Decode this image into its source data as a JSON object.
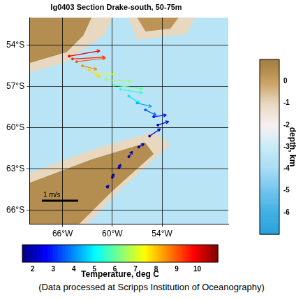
{
  "chart_data": {
    "type": "vector_map",
    "title": "lg0403 Section Drake-south, 50-75m",
    "xlim": [
      -70,
      -46
    ],
    "ylim": [
      -67,
      -52
    ],
    "xticks": [
      {
        "value": -66,
        "label": "66°W"
      },
      {
        "value": -60,
        "label": "60°W"
      },
      {
        "value": -54,
        "label": "54°W"
      }
    ],
    "yticks": [
      {
        "value": -66,
        "label": "66°S"
      },
      {
        "value": -63,
        "label": "63°S"
      },
      {
        "value": -60,
        "label": "60°S"
      },
      {
        "value": -57,
        "label": "57°S"
      },
      {
        "value": -54,
        "label": "54°S"
      }
    ],
    "grid": true,
    "vectors": {
      "lon": [
        -65.2,
        -64.8,
        -64.3,
        -63.6,
        -62.8,
        -61.8,
        -60.8,
        -59.8,
        -59.0,
        -58.0,
        -57.0,
        -56.0,
        -55.0,
        -54.5,
        -55.5,
        -56.8,
        -58.0,
        -59.2,
        -60.0,
        -60.6
      ],
      "lat": [
        -54.8,
        -55.0,
        -55.2,
        -55.5,
        -55.8,
        -56.1,
        -56.5,
        -56.9,
        -57.2,
        -57.7,
        -58.2,
        -58.7,
        -59.2,
        -59.8,
        -60.6,
        -61.4,
        -62.1,
        -62.9,
        -63.6,
        -64.3
      ],
      "u": [
        0.85,
        0.9,
        0.8,
        0.4,
        0.3,
        0.5,
        0.7,
        0.8,
        0.6,
        0.3,
        0.4,
        0.3,
        0.35,
        0.3,
        0.3,
        0.15,
        0.1,
        0.05,
        0.05,
        0.05
      ],
      "v": [
        0.15,
        0.05,
        0.1,
        -0.1,
        -0.2,
        0.0,
        -0.05,
        -0.1,
        -0.1,
        -0.2,
        -0.1,
        -0.15,
        0.05,
        0.1,
        0.2,
        0.1,
        0.15,
        0.1,
        0.1,
        0.05
      ],
      "temperature": [
        10.0,
        9.5,
        9.0,
        8.5,
        7.8,
        7.0,
        6.5,
        6.0,
        5.5,
        4.8,
        4.2,
        3.5,
        2.8,
        2.3,
        2.0,
        1.8,
        1.8,
        1.9,
        1.8,
        1.9
      ]
    },
    "scale_bar": {
      "label": "1 m/s",
      "speed": 1,
      "lon": -68.5,
      "lat": -65.3
    },
    "bathymetry": {
      "ocean_depth": -3.5,
      "polygons": [
        {
          "depth": -1,
          "points": [
            [
              -70,
              -52
            ],
            [
              -60,
              -52
            ],
            [
              -61,
              -53.3
            ],
            [
              -63.5,
              -54.3
            ],
            [
              -65.5,
              -55.2
            ],
            [
              -70,
              -56
            ]
          ]
        },
        {
          "depth": 0.5,
          "points": [
            [
              -70,
              -52
            ],
            [
              -62.5,
              -52
            ],
            [
              -63.5,
              -53.3
            ],
            [
              -65.5,
              -54.5
            ],
            [
              -70,
              -55.3
            ]
          ]
        },
        {
          "depth": -1,
          "points": [
            [
              -58,
              -52
            ],
            [
              -50,
              -52
            ],
            [
              -51,
              -53.2
            ],
            [
              -57,
              -53.6
            ]
          ]
        },
        {
          "depth": 0.3,
          "points": [
            [
              -57,
              -52
            ],
            [
              -52,
              -52
            ],
            [
              -53,
              -52.8
            ],
            [
              -56,
              -53
            ]
          ]
        },
        {
          "depth": -1,
          "points": [
            [
              -70,
              -67
            ],
            [
              -70,
              -63.3
            ],
            [
              -62,
              -61.5
            ],
            [
              -55,
              -60.3
            ],
            [
              -53,
              -61.2
            ],
            [
              -59,
              -64.5
            ],
            [
              -63,
              -67
            ]
          ]
        },
        {
          "depth": 0.5,
          "points": [
            [
              -70,
              -67
            ],
            [
              -70,
              -64
            ],
            [
              -62.5,
              -62.3
            ],
            [
              -56,
              -61.1
            ],
            [
              -55,
              -61.9
            ],
            [
              -60,
              -64.6
            ],
            [
              -64,
              -67
            ]
          ]
        }
      ]
    },
    "colorbars": [
      {
        "title": "Temperature, deg C",
        "lim": [
          1.5,
          11
        ],
        "ticks": [
          2,
          3,
          4,
          5,
          6,
          7,
          8,
          9,
          10
        ]
      },
      {
        "title": "depth, km",
        "lim": [
          -7,
          1
        ],
        "ticks": [
          -6,
          -5,
          -4,
          -3,
          -2,
          -1,
          0
        ]
      }
    ],
    "footer": "(Data processed at Scripps Institution of Oceanography)"
  }
}
